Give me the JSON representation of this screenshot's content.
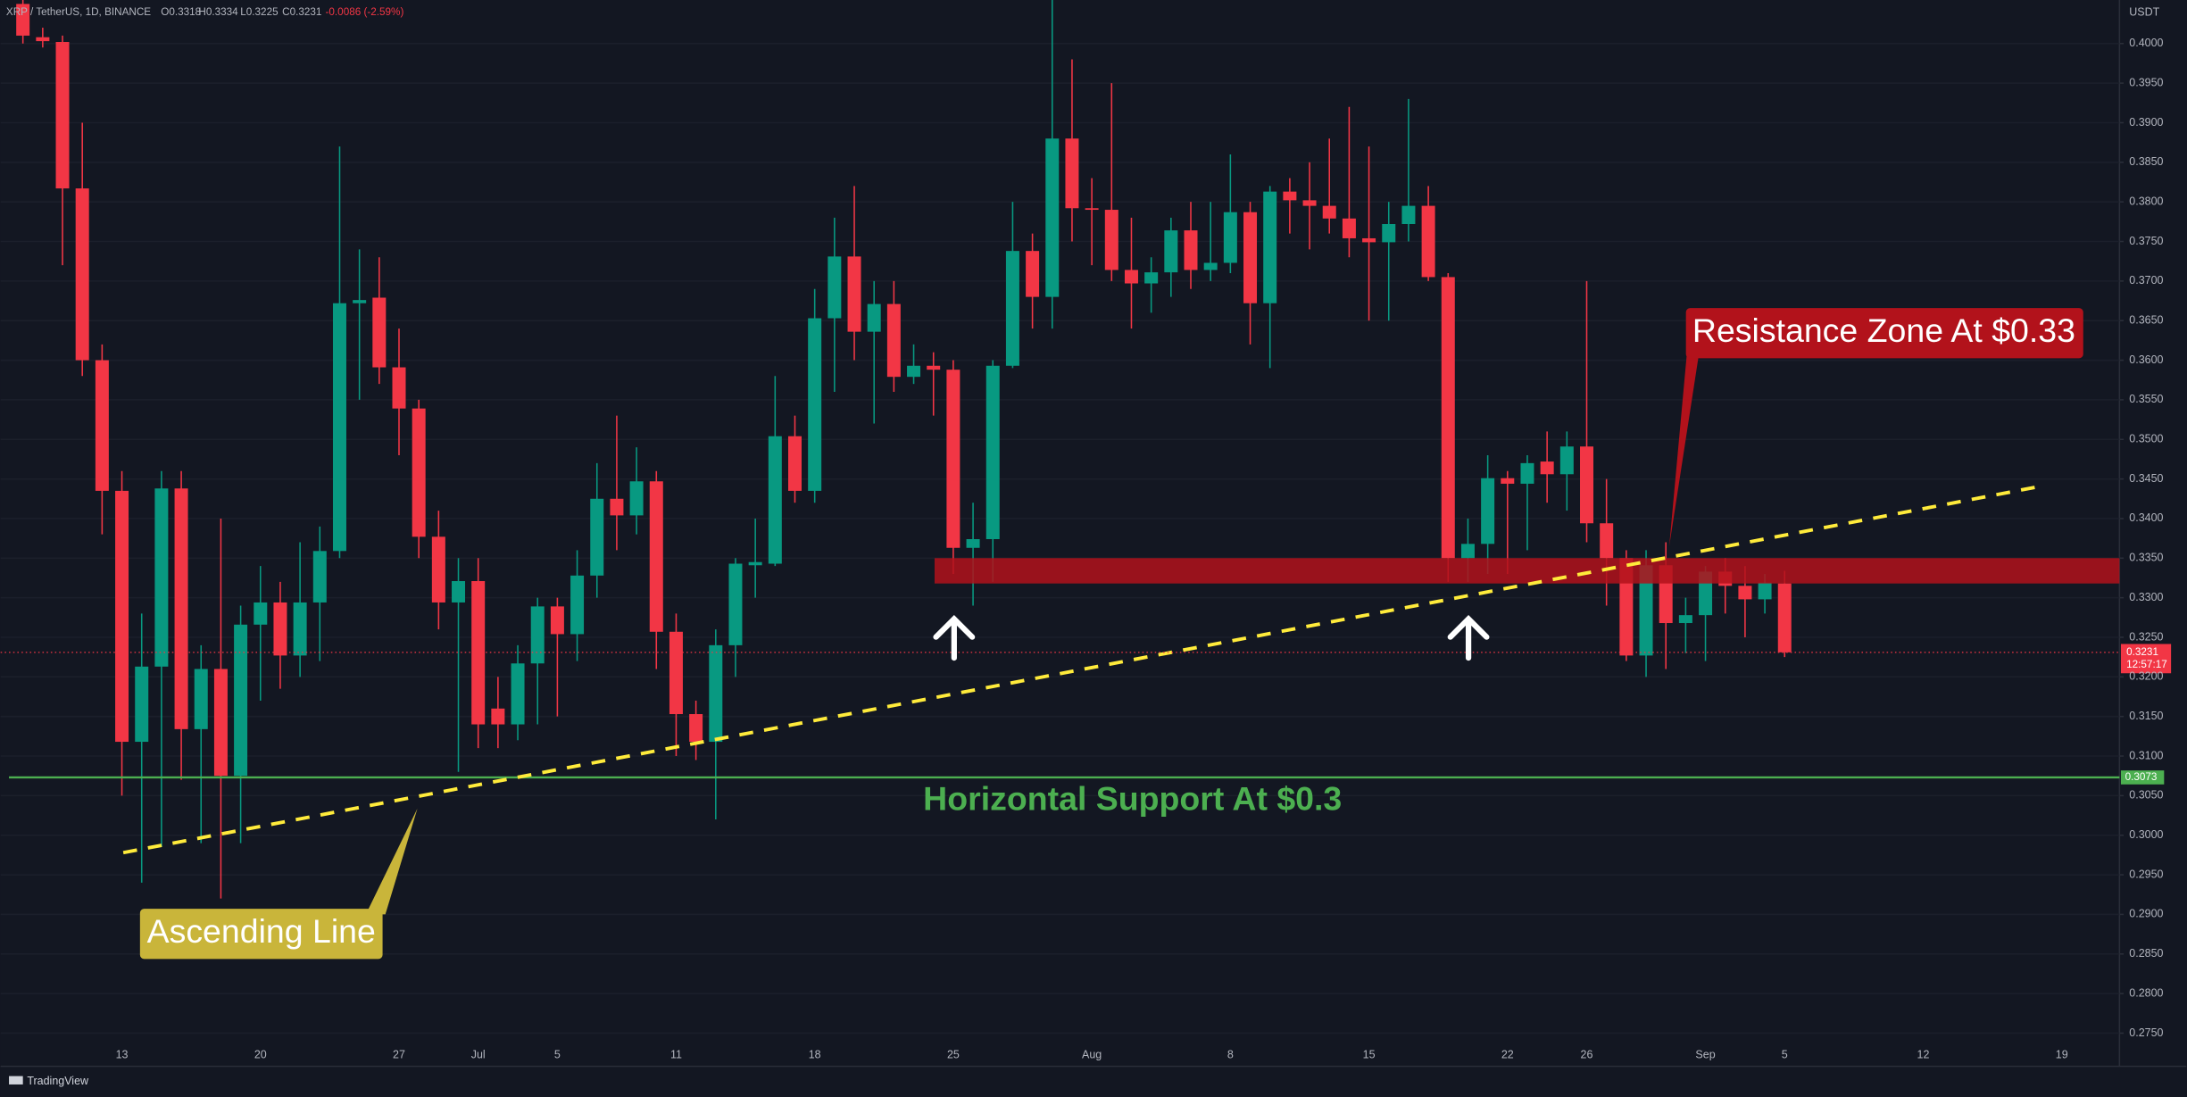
{
  "header": {
    "symbol": "XRP / TetherUS, 1D, BINANCE",
    "ohlc": [
      "O0.3318",
      "H0.3334",
      "L0.3225",
      "C0.3231",
      "-0.0086 (-2.59%)"
    ]
  },
  "footer": "TradingView",
  "chart_data": {
    "type": "candlestick",
    "y_axis_label": "USDT",
    "up_color": "#089981",
    "down_color": "#f23645",
    "grid": true,
    "categories": [
      null,
      null,
      null,
      null,
      null,
      "13",
      null,
      null,
      null,
      null,
      null,
      null,
      "20",
      null,
      null,
      null,
      null,
      null,
      null,
      "27",
      null,
      null,
      null,
      "Jul",
      null,
      null,
      null,
      "5",
      null,
      null,
      null,
      null,
      null,
      "11",
      null,
      null,
      null,
      null,
      null,
      null,
      "18",
      null,
      null,
      null,
      null,
      null,
      null,
      "25",
      null,
      null,
      null,
      null,
      null,
      null,
      "Aug",
      null,
      null,
      null,
      null,
      null,
      null,
      "8",
      null,
      null,
      null,
      null,
      null,
      null,
      "15",
      null,
      null,
      null,
      null,
      null,
      null,
      "22",
      null,
      null,
      null,
      "26",
      null,
      null,
      null,
      null,
      null,
      "Sep",
      null,
      null,
      null,
      "5",
      null,
      null,
      null,
      null,
      null,
      null,
      "12",
      null,
      null,
      null,
      null,
      null,
      null,
      "19",
      null,
      null
    ],
    "open": [
      0.405,
      0.4008,
      0.4002,
      0.3817,
      0.36,
      0.3435,
      0.3118,
      0.3213,
      0.3438,
      0.3134,
      0.321,
      0.3075,
      0.3266,
      0.3294,
      0.3227,
      0.3294,
      0.3359,
      0.3672,
      0.3679,
      0.3591,
      0.3539,
      0.3377,
      0.3294,
      0.3321,
      0.316,
      0.314,
      0.3217,
      0.3289,
      0.3254,
      0.3328,
      0.3425,
      0.3404,
      0.3447,
      0.3257,
      0.3153,
      0.3118,
      0.324,
      0.3341,
      0.3343,
      0.3504,
      0.3435,
      0.3653,
      0.3731,
      0.3636,
      0.3671,
      0.3579,
      0.3593,
      0.3588,
      0.3363,
      0.3374,
      0.3593,
      0.3738,
      0.368,
      0.388,
      0.3792,
      0.379,
      0.3714,
      0.3697,
      0.3711,
      0.3764,
      0.3714,
      0.3723,
      0.3787,
      0.3672,
      0.3813,
      0.3802,
      0.3795,
      0.3779,
      0.3754,
      0.3749,
      0.3772,
      0.3795,
      0.3705,
      0.335,
      0.3368,
      0.3451,
      0.3444,
      0.3472,
      0.3456,
      0.3491,
      0.3394,
      0.335,
      0.3227,
      0.3341,
      0.3268,
      0.3278,
      0.3333,
      0.3315,
      0.3298,
      0.3318,
      null,
      null,
      null,
      null,
      null,
      null,
      null,
      null,
      null,
      null,
      null,
      null,
      null,
      null,
      null,
      null
    ],
    "high": [
      0.406,
      0.402,
      0.401,
      0.39,
      0.362,
      0.346,
      0.328,
      0.346,
      0.346,
      0.324,
      0.34,
      0.329,
      0.334,
      0.332,
      0.337,
      0.339,
      0.387,
      0.374,
      0.373,
      0.364,
      0.355,
      0.341,
      0.335,
      0.335,
      0.32,
      0.324,
      0.33,
      0.33,
      0.336,
      0.347,
      0.353,
      0.349,
      0.346,
      0.328,
      0.317,
      0.326,
      0.335,
      0.34,
      0.358,
      0.353,
      0.369,
      0.378,
      0.382,
      0.37,
      0.37,
      0.362,
      0.361,
      0.36,
      0.342,
      0.36,
      0.38,
      0.376,
      0.406,
      0.398,
      0.383,
      0.395,
      0.378,
      0.373,
      0.378,
      0.38,
      0.38,
      0.386,
      0.38,
      0.382,
      0.383,
      0.385,
      0.388,
      0.392,
      0.387,
      0.38,
      0.393,
      0.382,
      0.371,
      0.34,
      0.348,
      0.346,
      0.348,
      0.351,
      0.351,
      0.37,
      0.345,
      0.336,
      0.336,
      0.337,
      0.33,
      0.334,
      0.335,
      0.334,
      0.333,
      0.3334,
      null,
      null,
      null,
      null,
      null,
      null,
      null,
      null,
      null,
      null,
      null,
      null,
      null,
      null,
      null,
      null
    ],
    "low": [
      0.4,
      0.3995,
      0.372,
      0.358,
      0.338,
      0.305,
      0.294,
      0.2985,
      0.307,
      0.299,
      0.292,
      0.299,
      0.317,
      0.3185,
      0.32,
      0.322,
      0.335,
      0.355,
      0.357,
      0.348,
      0.335,
      0.326,
      0.308,
      0.311,
      0.311,
      0.312,
      0.314,
      0.315,
      0.322,
      0.33,
      0.336,
      0.338,
      0.321,
      0.31,
      0.3095,
      0.302,
      0.32,
      0.33,
      0.334,
      0.342,
      0.342,
      0.356,
      0.36,
      0.352,
      0.356,
      0.357,
      0.353,
      0.333,
      0.329,
      0.332,
      0.359,
      0.364,
      0.364,
      0.375,
      0.372,
      0.37,
      0.364,
      0.366,
      0.368,
      0.369,
      0.37,
      0.371,
      0.362,
      0.359,
      0.376,
      0.374,
      0.376,
      0.373,
      0.365,
      0.365,
      0.375,
      0.37,
      0.332,
      0.332,
      0.333,
      0.333,
      0.336,
      0.342,
      0.341,
      0.337,
      0.329,
      0.322,
      0.32,
      0.321,
      0.323,
      0.322,
      0.328,
      0.325,
      0.328,
      0.3225,
      null,
      null,
      null,
      null,
      null,
      null,
      null,
      null,
      null,
      null,
      null,
      null,
      null,
      null,
      null,
      null
    ],
    "close": [
      0.401,
      0.4003,
      0.3817,
      0.36,
      0.3435,
      0.3118,
      0.3213,
      0.3438,
      0.3134,
      0.321,
      0.3075,
      0.3266,
      0.3294,
      0.3227,
      0.3294,
      0.3359,
      0.3672,
      0.3676,
      0.3591,
      0.3539,
      0.3377,
      0.3294,
      0.3321,
      0.314,
      0.314,
      0.3217,
      0.3289,
      0.3254,
      0.3328,
      0.3425,
      0.3404,
      0.3447,
      0.3257,
      0.3153,
      0.3118,
      0.324,
      0.3343,
      0.3345,
      0.3504,
      0.3435,
      0.3653,
      0.3731,
      0.3636,
      0.3671,
      0.3579,
      0.3593,
      0.3588,
      0.3363,
      0.3374,
      0.3593,
      0.3738,
      0.368,
      0.388,
      0.3792,
      0.379,
      0.3714,
      0.3697,
      0.3711,
      0.3764,
      0.3714,
      0.3723,
      0.3787,
      0.3672,
      0.3813,
      0.3802,
      0.3795,
      0.3779,
      0.3754,
      0.3749,
      0.3772,
      0.3795,
      0.3705,
      0.335,
      0.3368,
      0.3451,
      0.3444,
      0.347,
      0.3456,
      0.3491,
      0.3394,
      0.335,
      0.3227,
      0.3341,
      0.3268,
      0.3278,
      0.3333,
      0.3315,
      0.3298,
      0.3319,
      0.3231,
      null,
      null,
      null,
      null,
      null,
      null,
      null,
      null,
      null,
      null,
      null,
      null,
      null,
      null,
      null,
      null
    ],
    "ylim": [
      0.2738,
      0.4055
    ],
    "yticks": [
      {
        "value": 0.275,
        "label": "0.2750"
      },
      {
        "value": 0.28,
        "label": "0.2800"
      },
      {
        "value": 0.285,
        "label": "0.2850"
      },
      {
        "value": 0.29,
        "label": "0.2900"
      },
      {
        "value": 0.295,
        "label": "0.2950"
      },
      {
        "value": 0.3,
        "label": "0.3000"
      },
      {
        "value": 0.305,
        "label": "0.3050"
      },
      {
        "value": 0.31,
        "label": "0.3100"
      },
      {
        "value": 0.315,
        "label": "0.3150"
      },
      {
        "value": 0.32,
        "label": "0.3200"
      },
      {
        "value": 0.325,
        "label": "0.3250"
      },
      {
        "value": 0.33,
        "label": "0.3300"
      },
      {
        "value": 0.335,
        "label": "0.3350"
      },
      {
        "value": 0.34,
        "label": "0.3400"
      },
      {
        "value": 0.345,
        "label": "0.3450"
      },
      {
        "value": 0.35,
        "label": "0.3500"
      },
      {
        "value": 0.355,
        "label": "0.3550"
      },
      {
        "value": 0.36,
        "label": "0.3600"
      },
      {
        "value": 0.365,
        "label": "0.3650"
      },
      {
        "value": 0.37,
        "label": "0.3700"
      },
      {
        "value": 0.375,
        "label": "0.3750"
      },
      {
        "value": 0.38,
        "label": "0.3800"
      },
      {
        "value": 0.385,
        "label": "0.3850"
      },
      {
        "value": 0.39,
        "label": "0.3900"
      },
      {
        "value": 0.395,
        "label": "0.3950"
      },
      {
        "value": 0.4,
        "label": "0.4000"
      }
    ],
    "last_price": {
      "value": 0.3231,
      "countdown": "12:57:17",
      "color": "#f23645"
    },
    "support": {
      "label": "Horizontal Support At $0.3",
      "value": 0.3073,
      "color": "#4caf50"
    },
    "resistance_zone": {
      "label": "Resistance Zone At $0.33",
      "from": 0.3318,
      "to": 0.335,
      "color": "#b2121b"
    },
    "ascending_line": {
      "label": "Ascending Line",
      "start": 0.2978,
      "end": 0.3442,
      "color": "#ffeb3b"
    }
  }
}
